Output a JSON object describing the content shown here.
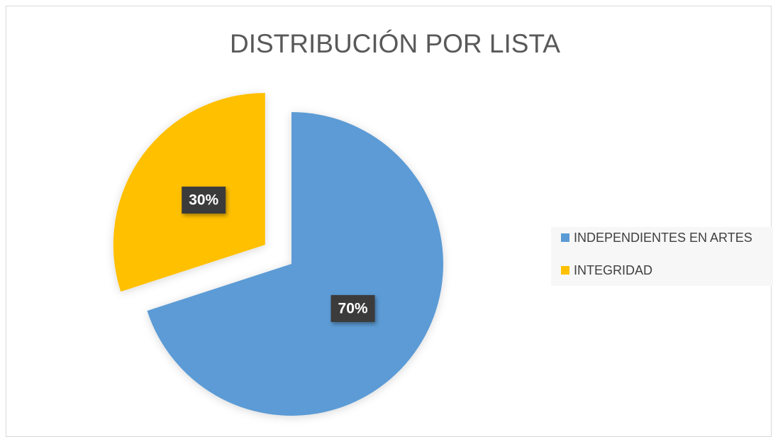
{
  "chart_data": {
    "type": "pie",
    "title": "DISTRIBUCIÓN POR LISTA",
    "categories": [
      "INDEPENDIENTES EN ARTES",
      "INTEGRIDAD"
    ],
    "values": [
      70,
      30
    ],
    "value_labels": [
      "70%",
      "30%"
    ],
    "colors": [
      "#5b9bd5",
      "#ffc000"
    ],
    "legend": "right"
  }
}
